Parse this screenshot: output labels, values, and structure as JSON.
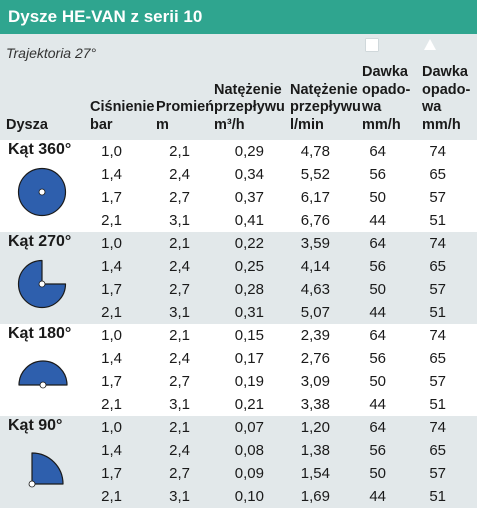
{
  "title": "Dysze HE-VAN z serii 10",
  "trajectory": "Trajektoria 27°",
  "headers": {
    "nozzle": "Dysza",
    "pressure": [
      "Ciśnienie",
      "bar"
    ],
    "radius": [
      "Promień",
      "m"
    ],
    "flow_m3h": [
      "Natężenie",
      "przepływu",
      "m³/h"
    ],
    "flow_lmin": [
      "Natężenie",
      "przepływu",
      "l/min"
    ],
    "rate_square": [
      "Dawka",
      "opado-",
      "wa",
      "mm/h"
    ],
    "rate_triangle": [
      "Dawka",
      "opado-",
      "wa",
      "mm/h"
    ]
  },
  "icons": {
    "square_col": "square-spacing-icon",
    "triangle_col": "triangle-spacing-icon"
  },
  "colors": {
    "banner": "#2fa58f",
    "shaded_row": "#e2e8ea",
    "pattern_fill": "#2e5fad"
  },
  "groups": [
    {
      "label": "Kąt 360°",
      "rows": [
        [
          "1,0",
          "2,1",
          "0,29",
          "4,78",
          "64",
          "74"
        ],
        [
          "1,4",
          "2,4",
          "0,34",
          "5,52",
          "56",
          "65"
        ],
        [
          "1,7",
          "2,7",
          "0,37",
          "6,17",
          "50",
          "57"
        ],
        [
          "2,1",
          "3,1",
          "0,41",
          "6,76",
          "44",
          "51"
        ]
      ]
    },
    {
      "label": "Kąt 270°",
      "rows": [
        [
          "1,0",
          "2,1",
          "0,22",
          "3,59",
          "64",
          "74"
        ],
        [
          "1,4",
          "2,4",
          "0,25",
          "4,14",
          "56",
          "65"
        ],
        [
          "1,7",
          "2,7",
          "0,28",
          "4,63",
          "50",
          "57"
        ],
        [
          "2,1",
          "3,1",
          "0,31",
          "5,07",
          "44",
          "51"
        ]
      ]
    },
    {
      "label": "Kąt 180°",
      "rows": [
        [
          "1,0",
          "2,1",
          "0,15",
          "2,39",
          "64",
          "74"
        ],
        [
          "1,4",
          "2,4",
          "0,17",
          "2,76",
          "56",
          "65"
        ],
        [
          "1,7",
          "2,7",
          "0,19",
          "3,09",
          "50",
          "57"
        ],
        [
          "2,1",
          "3,1",
          "0,21",
          "3,38",
          "44",
          "51"
        ]
      ]
    },
    {
      "label": "Kąt 90°",
      "rows": [
        [
          "1,0",
          "2,1",
          "0,07",
          "1,20",
          "64",
          "74"
        ],
        [
          "1,4",
          "2,4",
          "0,08",
          "1,38",
          "56",
          "65"
        ],
        [
          "1,7",
          "2,7",
          "0,09",
          "1,54",
          "50",
          "57"
        ],
        [
          "2,1",
          "3,1",
          "0,10",
          "1,69",
          "44",
          "51"
        ]
      ]
    }
  ]
}
